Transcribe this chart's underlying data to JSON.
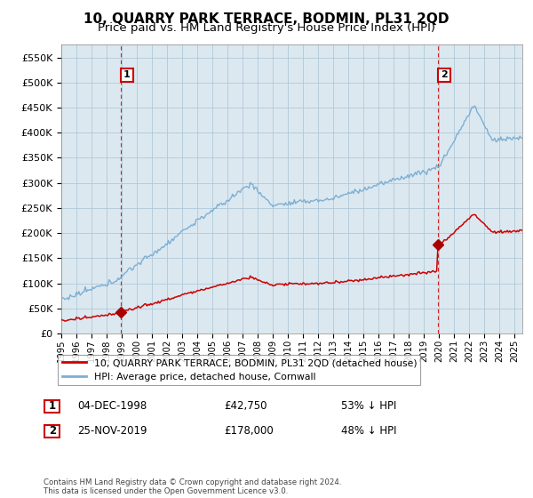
{
  "title": "10, QUARRY PARK TERRACE, BODMIN, PL31 2QD",
  "subtitle": "Price paid vs. HM Land Registry's House Price Index (HPI)",
  "ylim": [
    0,
    575000
  ],
  "yticks": [
    0,
    50000,
    100000,
    150000,
    200000,
    250000,
    300000,
    350000,
    400000,
    450000,
    500000,
    550000
  ],
  "ytick_labels": [
    "£0",
    "£50K",
    "£100K",
    "£150K",
    "£200K",
    "£250K",
    "£300K",
    "£350K",
    "£400K",
    "£450K",
    "£500K",
    "£550K"
  ],
  "sale1_date": 1998.92,
  "sale1_price": 42750,
  "sale1_label": "1",
  "sale2_date": 2019.9,
  "sale2_price": 178000,
  "sale2_label": "2",
  "hpi_color": "#7bafd4",
  "price_color": "#cc0000",
  "marker_color": "#aa0000",
  "vline_color": "#cc0000",
  "chart_bg": "#dce8f0",
  "background_color": "#ffffff",
  "grid_color": "#b0c8d8",
  "legend_label_price": "10, QUARRY PARK TERRACE, BODMIN, PL31 2QD (detached house)",
  "legend_label_hpi": "HPI: Average price, detached house, Cornwall",
  "table_rows": [
    [
      "1",
      "04-DEC-1998",
      "£42,750",
      "53% ↓ HPI"
    ],
    [
      "2",
      "25-NOV-2019",
      "£178,000",
      "48% ↓ HPI"
    ]
  ],
  "footnote": "Contains HM Land Registry data © Crown copyright and database right 2024.\nThis data is licensed under the Open Government Licence v3.0.",
  "title_fontsize": 11,
  "subtitle_fontsize": 9.5
}
